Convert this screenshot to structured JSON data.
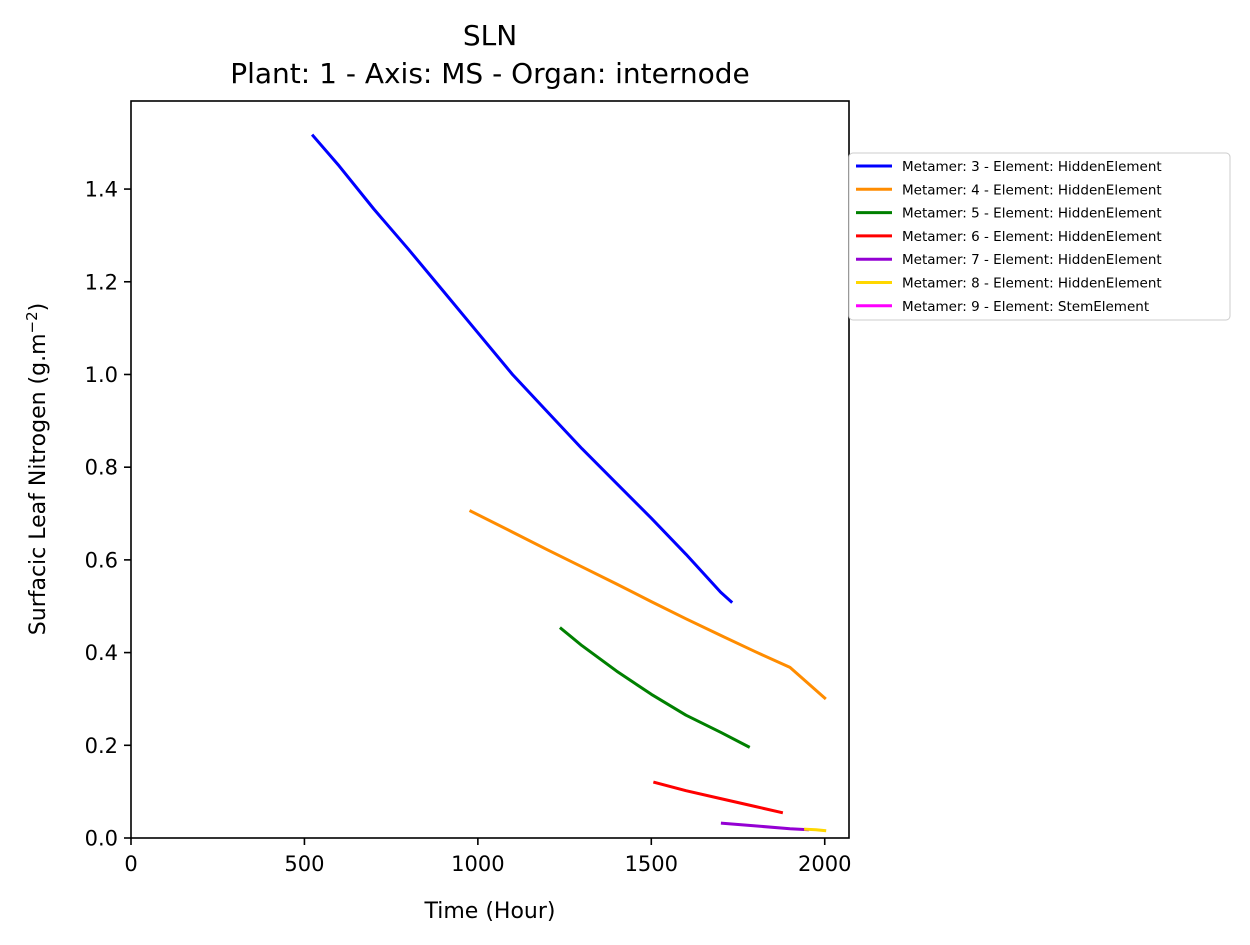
{
  "chart_data": {
    "type": "line",
    "title": "SLN",
    "subtitle": "Plant: 1 - Axis: MS - Organ: internode",
    "xlabel": "Time (Hour)",
    "ylabel": "Surfacic Leaf Nitrogen (g.m",
    "ylabel_unit_superscript": "−2",
    "ylabel_suffix": ")",
    "xlim": [
      0,
      2070
    ],
    "ylim": [
      0,
      1.59
    ],
    "xticks": [
      0,
      500,
      1000,
      1500,
      2000
    ],
    "xtick_labels": [
      "0",
      "500",
      "1000",
      "1500",
      "2000"
    ],
    "yticks": [
      0.0,
      0.2,
      0.4,
      0.6,
      0.8,
      1.0,
      1.2,
      1.4
    ],
    "ytick_labels": [
      "0.0",
      "0.2",
      "0.4",
      "0.6",
      "0.8",
      "1.0",
      "1.2",
      "1.4"
    ],
    "grid": false,
    "legend_position": "outside right, top",
    "series": [
      {
        "name": "Metamer: 3 - Element: HiddenElement",
        "color": "#0000ff",
        "x": [
          525,
          600,
          700,
          800,
          900,
          1000,
          1100,
          1200,
          1300,
          1400,
          1500,
          1600,
          1700,
          1730
        ],
        "y": [
          1.515,
          1.45,
          1.357,
          1.27,
          1.18,
          1.09,
          1.0,
          0.92,
          0.84,
          0.765,
          0.69,
          0.612,
          0.53,
          0.51
        ]
      },
      {
        "name": "Metamer: 4 - Element: HiddenElement",
        "color": "#ff8c00",
        "x": [
          980,
          1100,
          1200,
          1300,
          1400,
          1500,
          1600,
          1700,
          1800,
          1900,
          2000
        ],
        "y": [
          0.705,
          0.66,
          0.622,
          0.585,
          0.548,
          0.51,
          0.473,
          0.437,
          0.402,
          0.368,
          0.302
        ]
      },
      {
        "name": "Metamer: 5 - Element: HiddenElement",
        "color": "#008000",
        "x": [
          1240,
          1300,
          1400,
          1500,
          1600,
          1700,
          1780
        ],
        "y": [
          0.452,
          0.415,
          0.36,
          0.31,
          0.265,
          0.228,
          0.197
        ]
      },
      {
        "name": "Metamer: 6 - Element: HiddenElement",
        "color": "#ff0000",
        "x": [
          1510,
          1600,
          1700,
          1800,
          1875
        ],
        "y": [
          0.12,
          0.102,
          0.085,
          0.068,
          0.055
        ]
      },
      {
        "name": "Metamer: 7 - Element: HiddenElement",
        "color": "#9400d3",
        "x": [
          1705,
          1800,
          1900,
          1950
        ],
        "y": [
          0.032,
          0.026,
          0.02,
          0.018
        ]
      },
      {
        "name": "Metamer: 8 - Element: HiddenElement",
        "color": "#ffd700",
        "x": [
          1945,
          1975,
          2000
        ],
        "y": [
          0.019,
          0.018,
          0.016
        ]
      },
      {
        "name": "Metamer: 9 - Element: StemElement",
        "color": "#ff00ff",
        "x": [],
        "y": []
      }
    ]
  }
}
